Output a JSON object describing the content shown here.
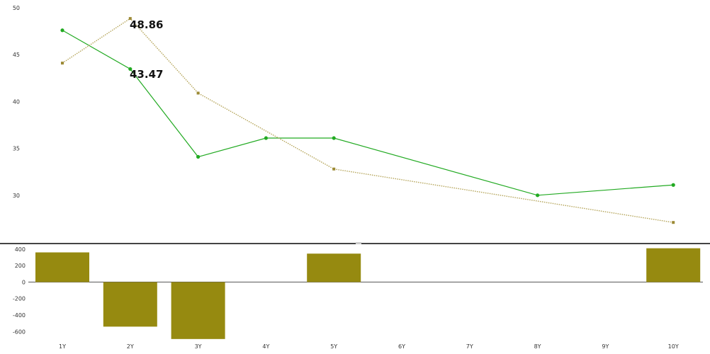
{
  "chart_data": [
    {
      "type": "line",
      "x": [
        "1Y",
        "2Y",
        "3Y",
        "4Y",
        "5Y",
        "6Y",
        "7Y",
        "8Y",
        "9Y",
        "10Y"
      ],
      "ylim": [
        25,
        50
      ],
      "yticks": [
        30,
        35,
        40,
        45,
        50
      ],
      "grid": false,
      "series": [
        {
          "color": "#22aa22",
          "style": "solid",
          "marker": "circle",
          "values": [
            47.6,
            43.47,
            34.1,
            36.1,
            36.1,
            null,
            null,
            30.0,
            null,
            31.1
          ]
        },
        {
          "color": "#b5a55a",
          "style": "dotted",
          "marker": "square",
          "values": [
            44.1,
            48.86,
            40.9,
            null,
            32.8,
            null,
            null,
            null,
            null,
            27.1
          ]
        }
      ],
      "annotations": [
        {
          "x": "2Y",
          "text": "48.86"
        },
        {
          "x": "2Y",
          "text": "43.47"
        }
      ]
    },
    {
      "type": "bar",
      "categories": [
        "1Y",
        "2Y",
        "3Y",
        "4Y",
        "5Y",
        "6Y",
        "7Y",
        "8Y",
        "9Y",
        "10Y"
      ],
      "values": [
        360,
        -540,
        -690,
        0,
        345,
        0,
        0,
        0,
        0,
        410
      ],
      "ylim": [
        -700,
        450
      ],
      "yticks": [
        400,
        200,
        0,
        -200,
        -400,
        -600
      ],
      "color": "#968a10",
      "grid": false
    }
  ]
}
